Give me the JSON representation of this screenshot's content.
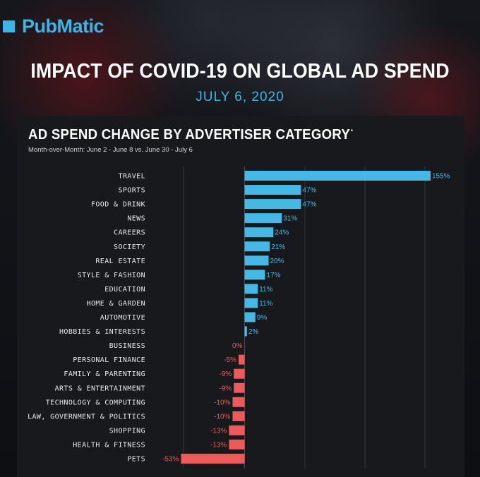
{
  "brand": {
    "name": "PubMatic",
    "color": "#3bb6e4"
  },
  "headline": "IMPACT OF COVID-19 ON GLOBAL AD SPEND",
  "date": "JULY 6, 2020",
  "chart_data": {
    "type": "bar",
    "orientation": "horizontal",
    "title": "AD SPEND CHANGE BY ADVERTISER CATEGORY",
    "title_mark": "*",
    "subtitle": "Month-over-Month: June 2 - June 8 vs. June 30 - July 6",
    "positive_color": "#45b8e6",
    "negative_color": "#ee5a5a",
    "gridlines": true,
    "xlim": [
      -53,
      155
    ],
    "categories": [
      "TRAVEL",
      "SPORTS",
      "FOOD & DRINK",
      "NEWS",
      "CAREERS",
      "SOCIETY",
      "REAL ESTATE",
      "STYLE & FASHION",
      "EDUCATION",
      "HOME & GARDEN",
      "AUTOMOTIVE",
      "HOBBIES & INTERESTS",
      "BUSINESS",
      "PERSONAL FINANCE",
      "FAMILY & PARENTING",
      "ARTS & ENTERTAINMENT",
      "TECHNOLOGY & COMPUTING",
      "LAW, GOVERNMENT & POLITICS",
      "SHOPPING",
      "HEALTH & FITNESS",
      "PETS"
    ],
    "values": [
      155,
      47,
      47,
      31,
      24,
      21,
      20,
      17,
      11,
      11,
      9,
      2,
      0,
      -5,
      -9,
      -9,
      -10,
      -10,
      -13,
      -13,
      -53
    ],
    "value_labels": [
      "155%",
      "47%",
      "47%",
      "31%",
      "24%",
      "21%",
      "20%",
      "17%",
      "11%",
      "11%",
      "9%",
      "2%",
      "0%",
      "-5%",
      "-9%",
      "-9%",
      "-10%",
      "-10%",
      "-13%",
      "-13%",
      "-53%"
    ]
  }
}
